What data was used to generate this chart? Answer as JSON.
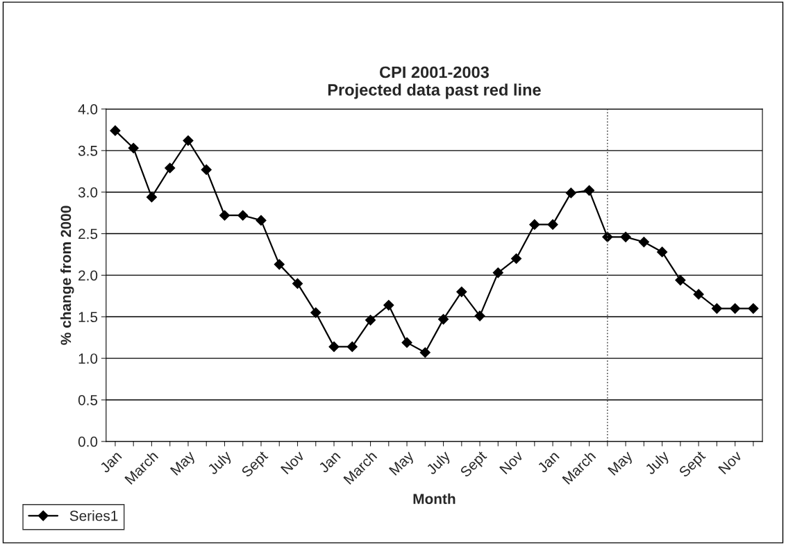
{
  "chart_data": {
    "type": "line",
    "title": "CPI 2001-2003\nProjected data past red line",
    "xlabel": "Month",
    "ylabel": "% change from 2000",
    "categories": [
      "Jan",
      null,
      "March",
      null,
      "May",
      null,
      "July",
      null,
      "Sept",
      null,
      "Nov",
      null,
      "Jan",
      null,
      "March",
      null,
      "May",
      null,
      "July",
      null,
      "Sept",
      null,
      "Nov",
      null,
      "Jan",
      null,
      "March",
      null,
      "May",
      null,
      "July",
      null,
      "Sept",
      null,
      "Nov",
      null
    ],
    "series": [
      {
        "name": "Series1",
        "color": "#000000",
        "values": [
          3.74,
          3.53,
          2.94,
          3.29,
          3.62,
          3.27,
          2.72,
          2.72,
          2.66,
          2.13,
          1.9,
          1.55,
          1.14,
          1.14,
          1.46,
          1.64,
          1.19,
          1.07,
          1.47,
          1.8,
          1.51,
          2.03,
          2.2,
          2.61,
          2.61,
          2.99,
          3.02,
          2.46,
          2.46,
          2.4,
          2.28,
          1.94,
          1.77,
          1.6,
          1.6,
          1.6
        ]
      }
    ],
    "ylim": [
      0,
      4
    ],
    "yticks": [
      {
        "value": 0,
        "label": "0.0"
      },
      {
        "value": 0.5,
        "label": "0.5"
      },
      {
        "value": 1,
        "label": "1.0"
      },
      {
        "value": 1.5,
        "label": "1.5"
      },
      {
        "value": 2,
        "label": "2.0"
      },
      {
        "value": 2.5,
        "label": "2.5"
      },
      {
        "value": 3,
        "label": "3.0"
      },
      {
        "value": 3.5,
        "label": "3.5"
      },
      {
        "value": 4,
        "label": "4.0"
      }
    ],
    "grid": "y",
    "legend": "bottom left",
    "marker": "diamond",
    "line_style": "solid"
  }
}
